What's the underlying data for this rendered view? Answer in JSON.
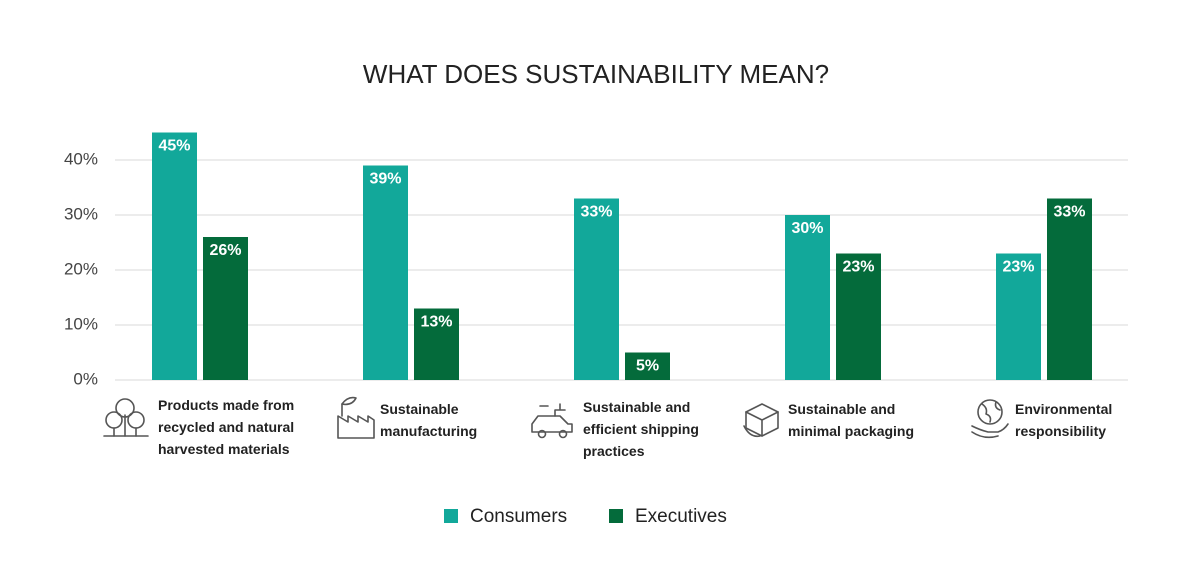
{
  "chart_data": {
    "type": "bar",
    "title": "WHAT DOES SUSTAINABILITY MEAN?",
    "categories": [
      "Products made from recycled and natural harvested materials",
      "Sustainable manufacturing",
      "Sustainable and efficient shipping practices",
      "Sustainable and minimal packaging",
      "Environmental responsibility"
    ],
    "series": [
      {
        "name": "Consumers",
        "color": "#12a89a",
        "values": [
          45,
          39,
          33,
          30,
          23
        ],
        "value_labels": [
          "45%",
          "39%",
          "33%",
          "30%",
          "23%"
        ]
      },
      {
        "name": "Executives",
        "color": "#046b3b",
        "values": [
          26,
          13,
          5,
          23,
          33
        ],
        "value_labels": [
          "26%",
          "13%",
          "5%",
          "23%",
          "33%"
        ]
      }
    ],
    "ylim": [
      0,
      45
    ],
    "yticks": [
      {
        "value": 0,
        "label": "0%"
      },
      {
        "value": 10,
        "label": "10%"
      },
      {
        "value": 20,
        "label": "20%"
      },
      {
        "value": 30,
        "label": "30%"
      },
      {
        "value": 40,
        "label": "40%"
      }
    ],
    "grid": true
  }
}
